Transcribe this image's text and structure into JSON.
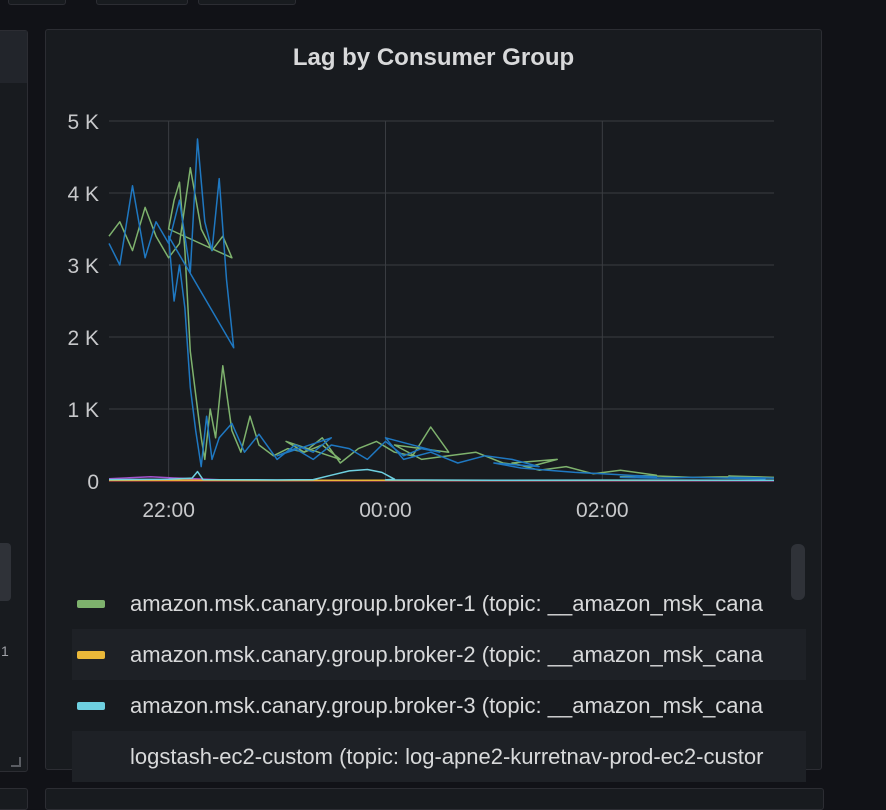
{
  "panel": {
    "title": "Lag by Consumer Group"
  },
  "left_panel": {
    "glyph": "1"
  },
  "colors": {
    "background": "#111217",
    "panel": "#181b1f",
    "grid": "#3a3d42",
    "axis_text": "#c7c8ca"
  },
  "chart_data": {
    "type": "line",
    "title": "Lag by Consumer Group",
    "xlabel": "",
    "ylabel": "",
    "x_tick_labels": [
      "22:00",
      "00:00",
      "02:00"
    ],
    "x_tick_times": [
      2200,
      2400,
      2600
    ],
    "xlim": [
      2127,
      2735
    ],
    "y_tick_labels": [
      "0",
      "1 K",
      "2 K",
      "3 K",
      "4 K",
      "5 K"
    ],
    "y_ticks": [
      0,
      1000,
      2000,
      3000,
      4000,
      5000
    ],
    "ylim": [
      0,
      5000
    ],
    "grid": true,
    "legend_position": "bottom",
    "series": [
      {
        "name": "amazon.msk.canary.group.broker-1 (topic: __amazon_msk_cana",
        "color": "#7eb26d",
        "x": [
          2127,
          2133,
          2140,
          2147,
          2153,
          2160,
          2166,
          2172,
          2178,
          2184,
          2190,
          2195,
          2200,
          2203,
          2206,
          2209,
          2212,
          2215,
          2218,
          2220,
          2223,
          2226,
          2230,
          2235,
          2240,
          2245,
          2250,
          2258,
          2266,
          2275,
          2285,
          2295,
          2305,
          2315,
          2325,
          2335,
          2345,
          2355,
          2365,
          2375,
          2385,
          2395,
          2405,
          2420,
          2435,
          2450,
          2465,
          2480,
          2495,
          2510,
          2525,
          2540,
          2555,
          2570,
          2590,
          2610,
          2630,
          2650,
          2670,
          2690,
          2710,
          2735
        ],
        "values": [
          3400,
          3600,
          3200,
          3800,
          3400,
          3100,
          3300,
          4350,
          3500,
          3200,
          3400,
          3100,
          3500,
          3900,
          4150,
          3200,
          1800,
          1200,
          600,
          300,
          1000,
          600,
          1600,
          700,
          400,
          900,
          500,
          350,
          450,
          400,
          500,
          300,
          550,
          400,
          600,
          250,
          450,
          550,
          400,
          350,
          750,
          400,
          500,
          300,
          350,
          400,
          250,
          200,
          300,
          250,
          150,
          200,
          100,
          150,
          80,
          60,
          70,
          50,
          60,
          40,
          70,
          50
        ]
      },
      {
        "name": "amazon.msk.canary.group.broker-2 (topic: __amazon_msk_cana",
        "color": "#eab839",
        "x": [
          2127,
          2200,
          2300,
          2400,
          2500,
          2600,
          2735
        ],
        "values": [
          10,
          12,
          8,
          10,
          9,
          11,
          10
        ]
      },
      {
        "name": "amazon.msk.canary.group.broker-3 (topic: __amazon_msk_cana",
        "color": "#6ed0e0",
        "x": [
          2127,
          2200,
          2213,
          2216,
          2219,
          2260,
          2320,
          2330,
          2340,
          2350,
          2358,
          2365,
          2400,
          2500,
          2600,
          2735
        ],
        "values": [
          20,
          25,
          40,
          130,
          20,
          15,
          20,
          80,
          140,
          160,
          120,
          25,
          15,
          10,
          12,
          10
        ]
      },
      {
        "name": "logstash-ec2-custom (topic: log-apne2-kurretnav-prod-ec2-custor",
        "color": "#1f78c1",
        "x": [
          2127,
          2133,
          2140,
          2147,
          2153,
          2160,
          2166,
          2172,
          2176,
          2180,
          2184,
          2188,
          2192,
          2196,
          2200,
          2203,
          2206,
          2209,
          2212,
          2215,
          2218,
          2221,
          2224,
          2228,
          2235,
          2242,
          2250,
          2260,
          2270,
          2280,
          2290,
          2300,
          2310,
          2320,
          2330,
          2340,
          2350,
          2360,
          2370,
          2380,
          2390,
          2400,
          2410,
          2425,
          2440,
          2455,
          2470,
          2485,
          2500,
          2515,
          2530,
          2545,
          2560,
          2575,
          2590,
          2610,
          2630,
          2650,
          2670,
          2690,
          2710,
          2735
        ],
        "values": [
          3300,
          3000,
          4100,
          3100,
          3600,
          3300,
          3900,
          2900,
          4750,
          3600,
          3200,
          4200,
          2800,
          1850,
          3400,
          2500,
          3000,
          2400,
          1300,
          700,
          200,
          900,
          300,
          600,
          800,
          400,
          650,
          300,
          500,
          400,
          600,
          350,
          450,
          300,
          500,
          450,
          300,
          550,
          350,
          450,
          400,
          600,
          300,
          400,
          250,
          350,
          300,
          200,
          250,
          180,
          150,
          120,
          100,
          80,
          60,
          50,
          40,
          50,
          40,
          30,
          50,
          40
        ]
      },
      {
        "name": "",
        "color": "#c15c17",
        "x": [
          2127,
          2250,
          2400,
          2550,
          2735
        ],
        "values": [
          5,
          5,
          5,
          5,
          5
        ]
      },
      {
        "name": "",
        "color": "#a352cc",
        "x": [
          2127,
          2150,
          2180,
          2200,
          2230,
          2300,
          2400,
          2735
        ],
        "values": [
          30,
          60,
          20,
          45,
          15,
          10,
          8,
          6
        ]
      },
      {
        "name": "",
        "color": "#e24d42",
        "x": [
          2127,
          2300,
          2500,
          2735
        ],
        "values": [
          3,
          3,
          3,
          3
        ]
      }
    ]
  }
}
